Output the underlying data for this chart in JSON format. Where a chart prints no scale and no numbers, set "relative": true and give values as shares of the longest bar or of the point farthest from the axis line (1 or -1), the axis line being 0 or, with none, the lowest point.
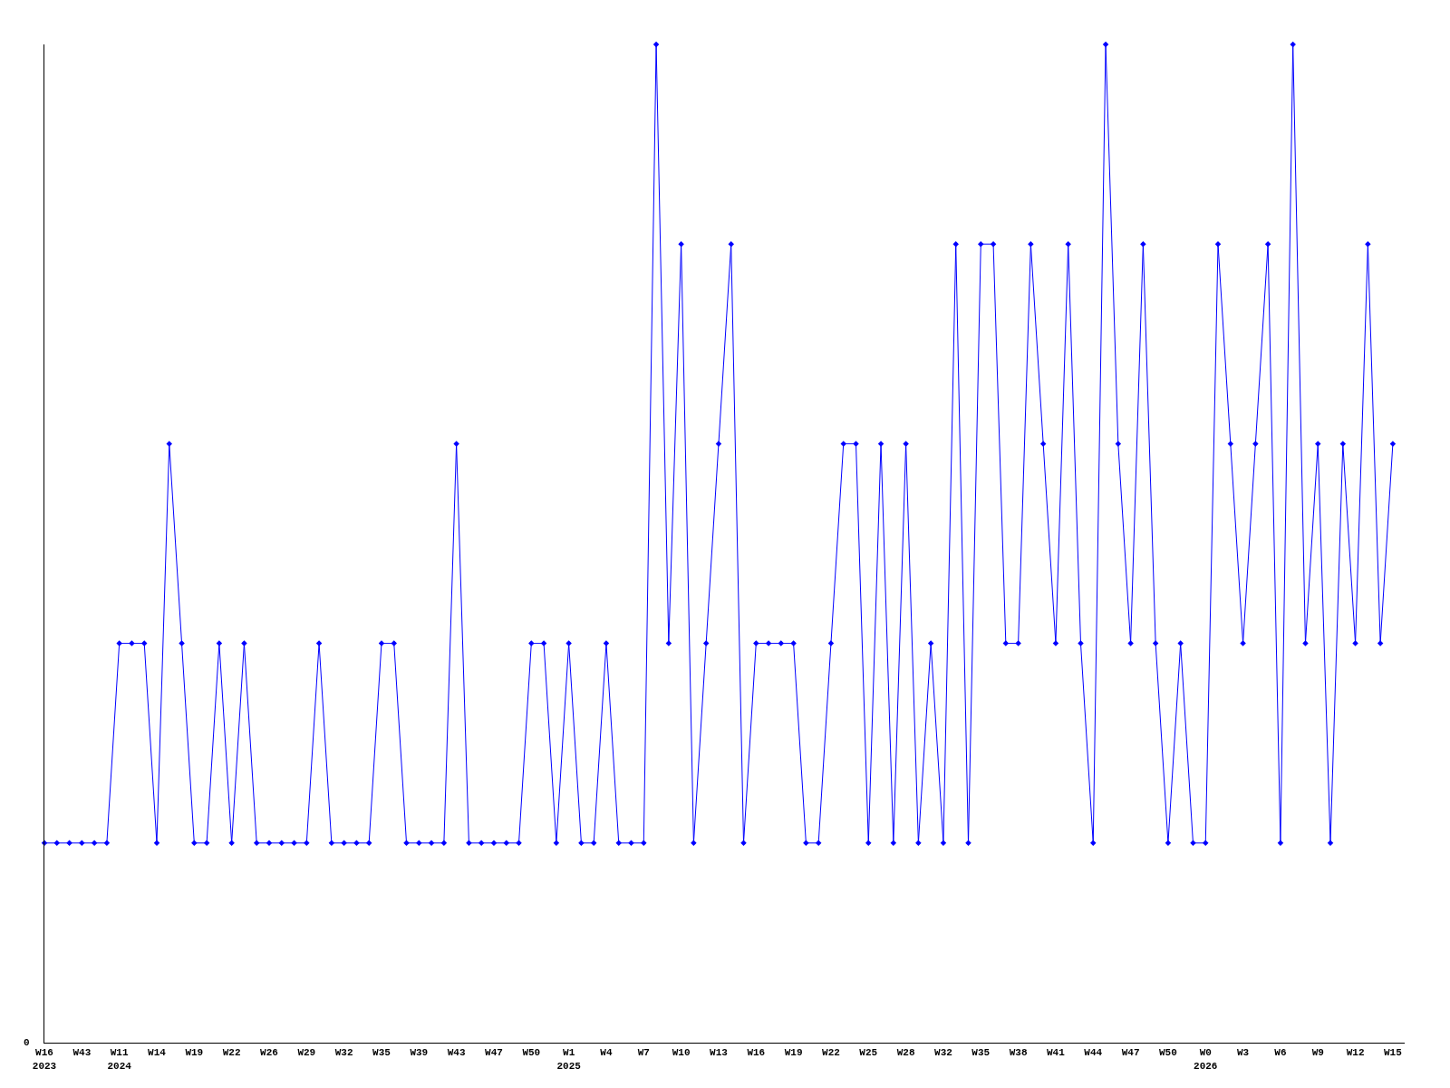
{
  "chart_data": {
    "type": "line",
    "relative": true,
    "color": "#0000ff",
    "marker": "diamond",
    "line_style": "solid",
    "annotations": [
      "0"
    ],
    "categories": [
      "W16\n2023",
      null,
      null,
      "W43",
      null,
      null,
      "W11\n2024",
      null,
      null,
      "W14",
      null,
      null,
      "W19",
      null,
      null,
      "W22",
      null,
      null,
      "W26",
      null,
      null,
      "W29",
      null,
      null,
      "W32",
      null,
      null,
      "W35",
      null,
      null,
      "W39",
      null,
      null,
      "W43",
      null,
      null,
      "W47",
      null,
      null,
      "W50",
      null,
      null,
      "W1\n2025",
      null,
      null,
      "W4",
      null,
      null,
      "W7",
      null,
      null,
      "W10",
      null,
      null,
      "W13",
      null,
      null,
      "W16",
      null,
      null,
      "W19",
      null,
      null,
      "W22",
      null,
      null,
      "W25",
      null,
      null,
      "W28",
      null,
      null,
      "W32",
      null,
      null,
      "W35",
      null,
      null,
      "W38",
      null,
      null,
      "W41",
      null,
      null,
      "W44",
      null,
      null,
      "W47",
      null,
      null,
      "W50",
      null,
      null,
      "W0\n2026",
      null,
      null,
      "W3",
      null,
      null,
      "W6",
      null,
      null,
      "W9",
      null,
      null,
      "W12",
      null,
      null,
      "W15"
    ],
    "values": [
      0.2,
      0.2,
      0.2,
      0.2,
      0.2,
      0.2,
      0.4,
      0.4,
      0.4,
      0.2,
      0.6,
      0.4,
      0.2,
      0.2,
      0.4,
      0.2,
      0.4,
      0.2,
      0.2,
      0.2,
      0.2,
      0.2,
      0.4,
      0.2,
      0.2,
      0.2,
      0.2,
      0.4,
      0.4,
      0.2,
      0.2,
      0.2,
      0.2,
      0.6,
      0.2,
      0.2,
      0.2,
      0.2,
      0.2,
      0.4,
      0.4,
      0.2,
      0.4,
      0.2,
      0.2,
      0.4,
      0.2,
      0.2,
      0.2,
      1,
      0.4,
      0.8,
      0.2,
      0.4,
      0.6,
      0.8,
      0.2,
      0.4,
      0.4,
      0.4,
      0.4,
      0.2,
      0.2,
      0.4,
      0.6,
      0.6,
      0.2,
      0.6,
      0.2,
      0.6,
      0.2,
      0.4,
      0.2,
      0.8,
      0.2,
      0.8,
      0.8,
      0.4,
      0.4,
      0.8,
      0.6,
      0.4,
      0.8,
      0.4,
      0.2,
      1,
      0.6,
      0.4,
      0.8,
      0.4,
      0.2,
      0.4,
      0.2,
      0.2,
      0.8,
      0.6,
      0.4,
      0.6,
      0.8,
      0.2,
      1,
      0.4,
      0.6,
      0.2,
      0.6,
      0.4,
      0.8,
      0.4,
      0.6
    ]
  }
}
